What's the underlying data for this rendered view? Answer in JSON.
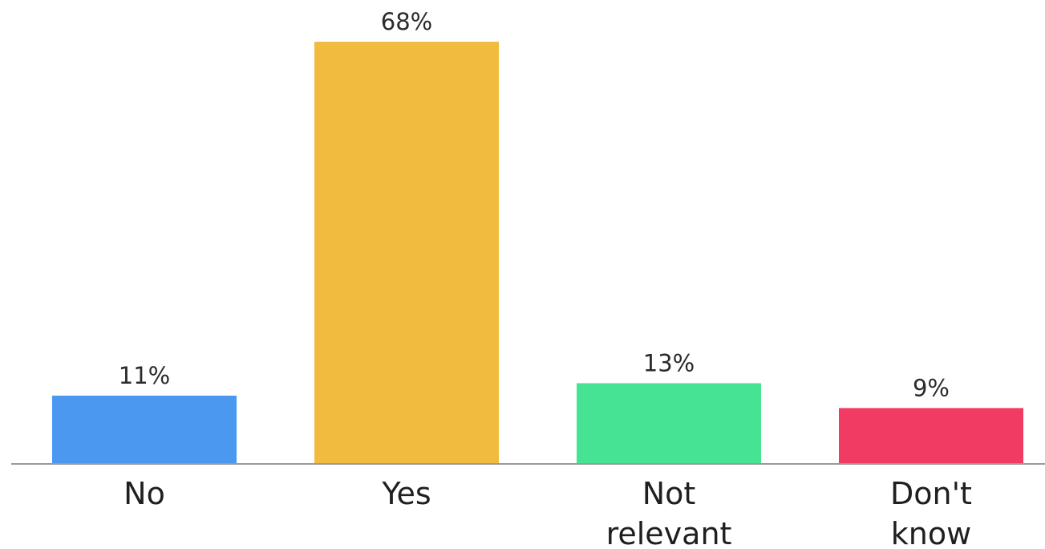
{
  "chart_data": {
    "type": "bar",
    "title": "",
    "xlabel": "",
    "ylabel": "",
    "categories": [
      "No",
      "Yes",
      "Not relevant",
      "Don't know"
    ],
    "category_lines": [
      [
        "No"
      ],
      [
        "Yes"
      ],
      [
        "Not",
        "relevant"
      ],
      [
        "Don't",
        "know"
      ]
    ],
    "values": [
      11,
      68,
      13,
      9
    ],
    "value_labels": [
      "11%",
      "68%",
      "13%",
      "9%"
    ],
    "unit": "%",
    "colors": [
      "#4a98f0",
      "#f0bb3e",
      "#46e492",
      "#f23b63"
    ],
    "axis_color": "#9a9a9a",
    "ylim": [
      0,
      68
    ],
    "grid": false,
    "legend": "none"
  }
}
